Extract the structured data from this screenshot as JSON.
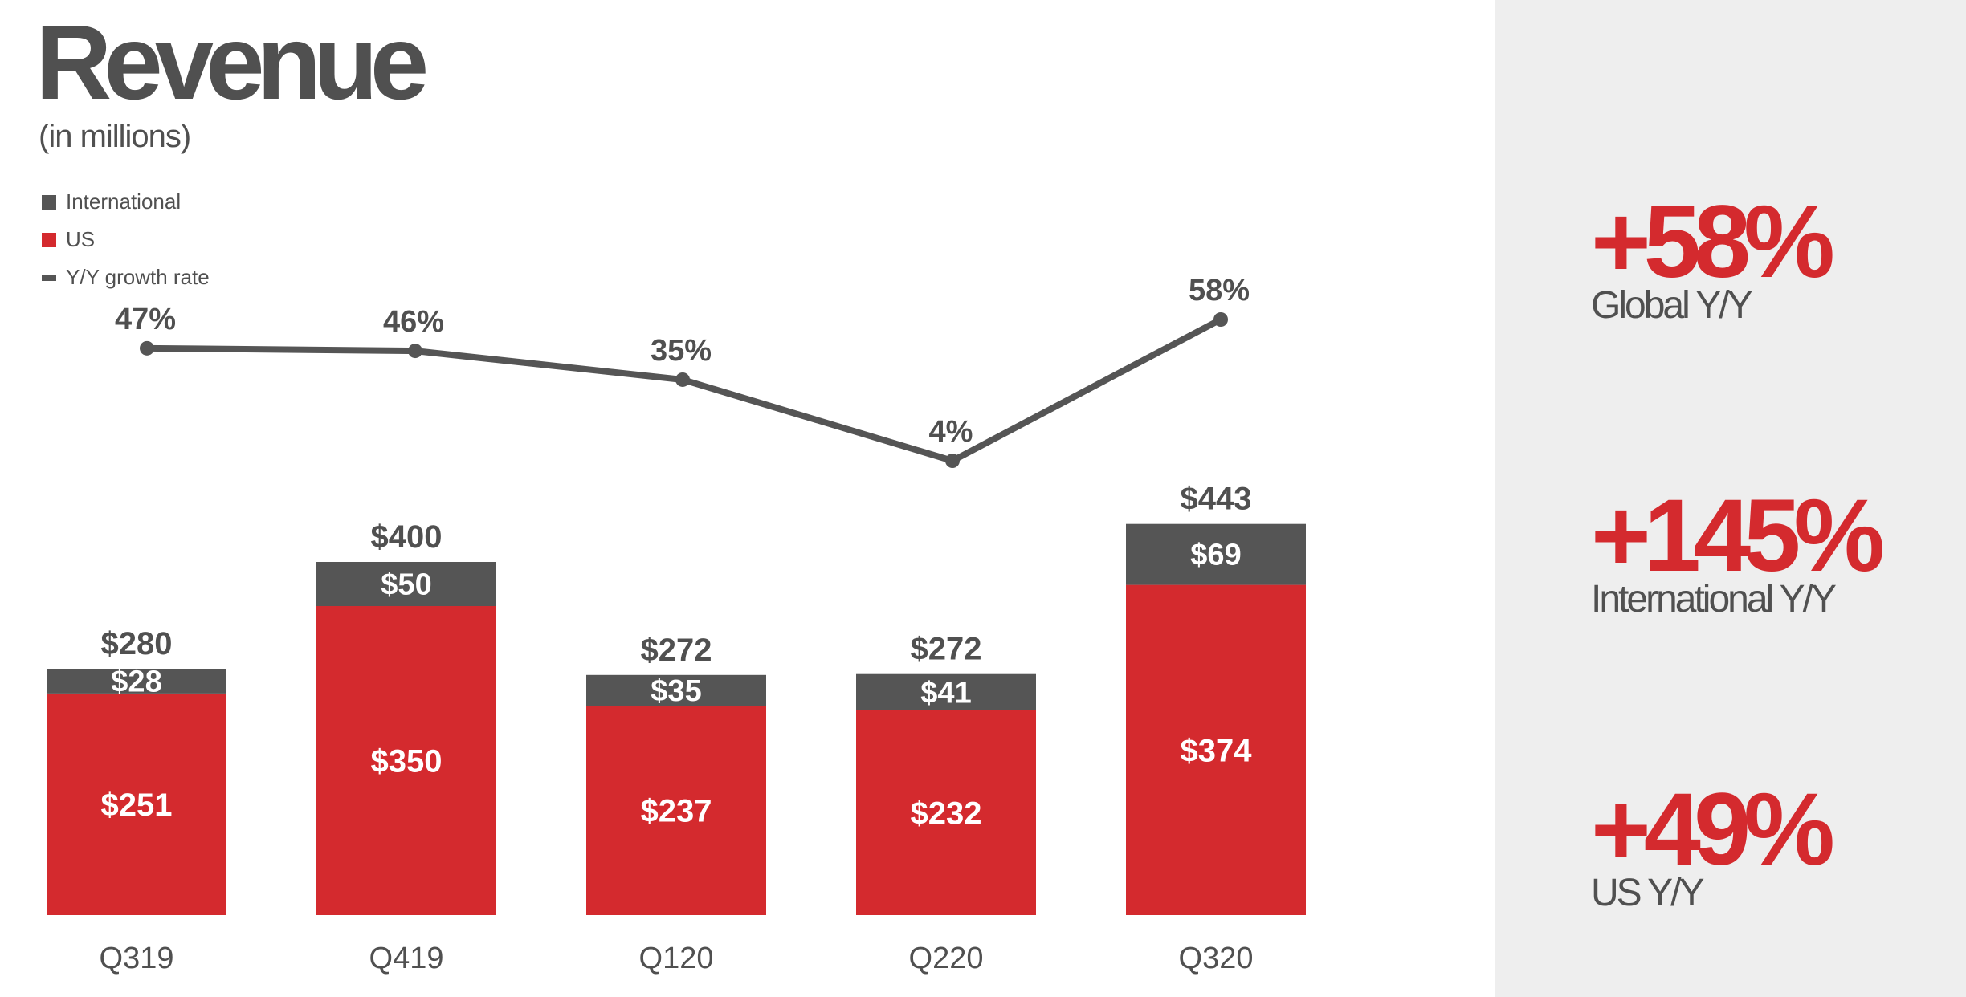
{
  "header": {
    "title": "Revenue",
    "subtitle": "(in millions)"
  },
  "colors": {
    "us": "#d42a2e",
    "international": "#555555",
    "growth_line": "#555555",
    "sidebar_bg": "#eeeeee",
    "kpi_accent": "#d42a2e"
  },
  "chart_data": {
    "type": "bar",
    "stacked": true,
    "categories": [
      "Q319",
      "Q419",
      "Q120",
      "Q220",
      "Q320"
    ],
    "series": [
      {
        "name": "US",
        "values": [
          251,
          350,
          237,
          232,
          374
        ],
        "labels": [
          "$251",
          "$350",
          "$237",
          "$232",
          "$374"
        ]
      },
      {
        "name": "International",
        "values": [
          28,
          50,
          35,
          41,
          69
        ],
        "labels": [
          "$28",
          "$50",
          "$35",
          "$41",
          "$69"
        ]
      }
    ],
    "totals": [
      280,
      400,
      272,
      272,
      443
    ],
    "total_labels": [
      "$280",
      "$400",
      "$272",
      "$272",
      "$443"
    ],
    "line": {
      "name": "Y/Y growth rate",
      "values": [
        47,
        46,
        35,
        4,
        58
      ],
      "labels": [
        "47%",
        "46%",
        "35%",
        "4%",
        "58%"
      ]
    },
    "ylim": [
      0,
      460
    ],
    "grid": false,
    "legend": {
      "placement": "top-left",
      "items": [
        "International",
        "US",
        "Y/Y growth rate"
      ]
    }
  },
  "sidebar": {
    "kpis": [
      {
        "value": "+58%",
        "label": "Global Y/Y"
      },
      {
        "value": "+145%",
        "label": "International Y/Y"
      },
      {
        "value": "+49%",
        "label": "US Y/Y"
      }
    ]
  }
}
